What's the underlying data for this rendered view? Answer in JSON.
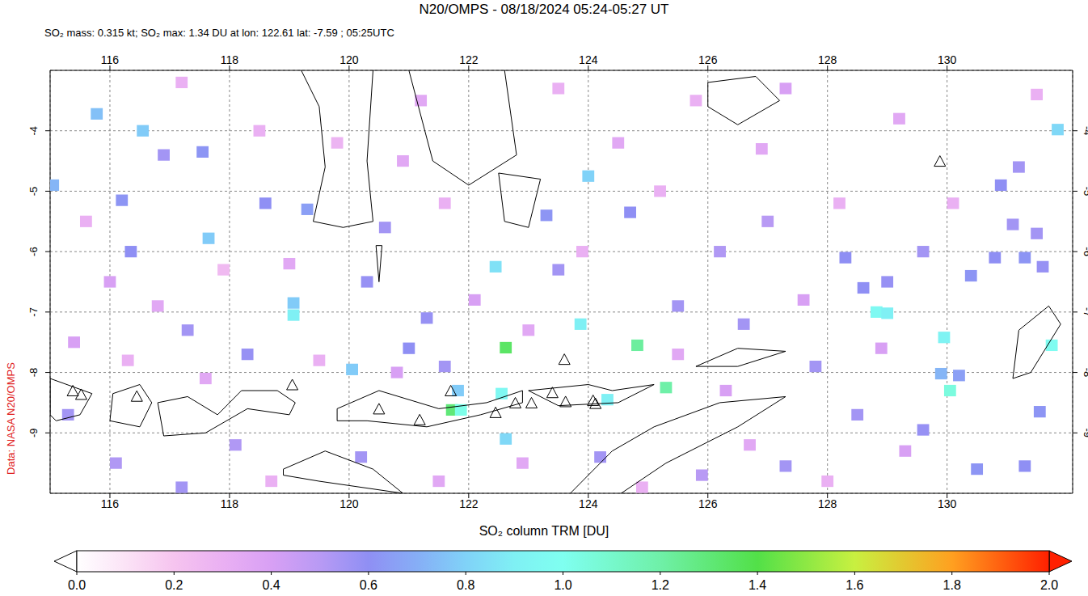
{
  "chart_data": {
    "type": "map",
    "title": "N20/OMPS - 08/18/2024 05:24-05:27 UT",
    "subtitle": "SO₂ mass: 0.315 kt; SO₂ max: 1.34 DU at lon: 122.61 lat: -7.59 ; 05:25UTC",
    "annotation": "Data: NASA N20/OMPS",
    "xlim": [
      115,
      132.1
    ],
    "ylim": [
      -10,
      -3
    ],
    "xticks": [
      116,
      118,
      120,
      122,
      124,
      126,
      128,
      130
    ],
    "yticks": [
      -9,
      -8,
      -7,
      -6,
      -5,
      -4
    ],
    "grid": true,
    "colorbar": {
      "label": "SO₂ column TRM [DU]",
      "range": [
        0,
        2
      ],
      "ticks": [
        {
          "value": 0,
          "label": "0.0"
        },
        {
          "value": 0.2,
          "label": "0.2"
        },
        {
          "value": 0.4,
          "label": "0.4"
        },
        {
          "value": 0.6,
          "label": "0.6"
        },
        {
          "value": 0.8,
          "label": "0.8"
        },
        {
          "value": 1,
          "label": "1.0"
        },
        {
          "value": 1.2,
          "label": "1.2"
        },
        {
          "value": 1.4,
          "label": "1.4"
        },
        {
          "value": 1.6,
          "label": "1.6"
        },
        {
          "value": 1.8,
          "label": "1.8"
        },
        {
          "value": 2,
          "label": "2.0"
        }
      ]
    },
    "cells": [
      [
        122.62,
        -7.59,
        1.34
      ],
      [
        121.72,
        -8.62,
        1.3
      ],
      [
        121.87,
        -8.62,
        1.02
      ],
      [
        125.3,
        -8.25,
        1.2
      ],
      [
        124.82,
        -7.55,
        1.22
      ],
      [
        130.05,
        -8.3,
        1.05
      ],
      [
        131.75,
        -7.55,
        0.98
      ],
      [
        129.95,
        -7.42,
        0.92
      ],
      [
        128.82,
        -7.0,
        0.96
      ],
      [
        129.0,
        -7.02,
        0.9
      ],
      [
        123.87,
        -7.2,
        0.9
      ],
      [
        122.55,
        -8.35,
        0.95
      ],
      [
        124.32,
        -8.45,
        0.9
      ],
      [
        119.07,
        -7.05,
        0.9
      ],
      [
        119.07,
        -6.85,
        0.78
      ],
      [
        121.82,
        -8.3,
        0.78
      ],
      [
        116.55,
        -4.0,
        0.78
      ],
      [
        115.78,
        -3.72,
        0.75
      ],
      [
        131.85,
        -3.98,
        0.82
      ],
      [
        115.05,
        -4.9,
        0.72
      ],
      [
        122.45,
        -6.25,
        0.85
      ],
      [
        124.0,
        -4.75,
        0.8
      ],
      [
        120.05,
        -7.95,
        0.78
      ],
      [
        122.62,
        -9.1,
        0.82
      ],
      [
        117.65,
        -5.78,
        0.78
      ],
      [
        129.9,
        -8.02,
        0.72
      ],
      [
        130.2,
        -8.05,
        0.65
      ],
      [
        116.2,
        -5.15,
        0.62
      ],
      [
        116.35,
        -6.0,
        0.6
      ],
      [
        116.9,
        -4.4,
        0.55
      ],
      [
        117.55,
        -4.35,
        0.62
      ],
      [
        118.6,
        -5.2,
        0.6
      ],
      [
        119.3,
        -5.3,
        0.65
      ],
      [
        120.6,
        -5.6,
        0.55
      ],
      [
        121.0,
        -7.6,
        0.6
      ],
      [
        121.3,
        -7.1,
        0.58
      ],
      [
        121.6,
        -7.9,
        0.55
      ],
      [
        123.3,
        -5.4,
        0.62
      ],
      [
        123.5,
        -6.3,
        0.55
      ],
      [
        124.7,
        -5.35,
        0.6
      ],
      [
        125.5,
        -6.9,
        0.55
      ],
      [
        126.2,
        -6.0,
        0.52
      ],
      [
        127.0,
        -5.5,
        0.5
      ],
      [
        128.3,
        -6.1,
        0.6
      ],
      [
        128.6,
        -6.6,
        0.6
      ],
      [
        129.0,
        -6.5,
        0.58
      ],
      [
        129.6,
        -6.0,
        0.55
      ],
      [
        130.4,
        -6.4,
        0.62
      ],
      [
        130.8,
        -6.1,
        0.6
      ],
      [
        131.1,
        -5.55,
        0.55
      ],
      [
        131.3,
        -6.1,
        0.62
      ],
      [
        131.6,
        -6.25,
        0.58
      ],
      [
        131.5,
        -5.7,
        0.55
      ],
      [
        130.9,
        -4.9,
        0.6
      ],
      [
        131.2,
        -4.6,
        0.55
      ],
      [
        130.5,
        -9.6,
        0.62
      ],
      [
        131.3,
        -9.55,
        0.6
      ],
      [
        131.55,
        -8.65,
        0.62
      ],
      [
        127.3,
        -9.55,
        0.55
      ],
      [
        128.5,
        -8.7,
        0.55
      ],
      [
        129.6,
        -8.95,
        0.58
      ],
      [
        124.2,
        -9.4,
        0.55
      ],
      [
        120.2,
        -9.4,
        0.55
      ],
      [
        118.1,
        -9.2,
        0.52
      ],
      [
        117.2,
        -9.9,
        0.55
      ],
      [
        116.1,
        -9.5,
        0.52
      ],
      [
        115.3,
        -8.7,
        0.55
      ],
      [
        118.3,
        -7.7,
        0.58
      ],
      [
        117.3,
        -7.3,
        0.55
      ],
      [
        120.3,
        -6.5,
        0.58
      ],
      [
        126.6,
        -7.2,
        0.55
      ],
      [
        127.8,
        -7.9,
        0.55
      ],
      [
        125.9,
        -9.7,
        0.5
      ],
      [
        115.6,
        -5.5,
        0.3
      ],
      [
        116.8,
        -6.9,
        0.35
      ],
      [
        117.9,
        -6.3,
        0.25
      ],
      [
        118.5,
        -4.0,
        0.3
      ],
      [
        119.8,
        -4.2,
        0.28
      ],
      [
        120.9,
        -4.5,
        0.35
      ],
      [
        121.6,
        -5.2,
        0.3
      ],
      [
        122.1,
        -6.8,
        0.4
      ],
      [
        123.0,
        -7.3,
        0.35
      ],
      [
        123.9,
        -6.0,
        0.3
      ],
      [
        124.5,
        -4.2,
        0.35
      ],
      [
        125.2,
        -5.0,
        0.3
      ],
      [
        125.8,
        -3.5,
        0.3
      ],
      [
        126.9,
        -4.3,
        0.35
      ],
      [
        127.6,
        -6.8,
        0.4
      ],
      [
        128.2,
        -5.2,
        0.3
      ],
      [
        129.2,
        -3.8,
        0.35
      ],
      [
        130.1,
        -5.2,
        0.3
      ],
      [
        131.5,
        -3.4,
        0.3
      ],
      [
        115.4,
        -7.5,
        0.4
      ],
      [
        116.3,
        -7.8,
        0.3
      ],
      [
        117.6,
        -8.1,
        0.35
      ],
      [
        119.5,
        -7.8,
        0.3
      ],
      [
        120.8,
        -8.0,
        0.4
      ],
      [
        122.9,
        -9.5,
        0.35
      ],
      [
        124.9,
        -9.9,
        0.3
      ],
      [
        126.7,
        -9.2,
        0.35
      ],
      [
        128.0,
        -9.8,
        0.3
      ],
      [
        129.3,
        -9.3,
        0.4
      ],
      [
        118.7,
        -9.8,
        0.3
      ],
      [
        121.5,
        -9.8,
        0.35
      ],
      [
        123.5,
        -3.3,
        0.3
      ],
      [
        121.2,
        -3.5,
        0.35
      ],
      [
        117.2,
        -3.2,
        0.3
      ],
      [
        127.3,
        -3.3,
        0.4
      ],
      [
        125.5,
        -7.7,
        0.35
      ],
      [
        126.3,
        -8.3,
        0.4
      ],
      [
        128.9,
        -7.6,
        0.4
      ],
      [
        119.0,
        -6.2,
        0.35
      ],
      [
        116.0,
        -6.5,
        0.4
      ]
    ],
    "volcanoes": [
      [
        115.38,
        -8.32
      ],
      [
        115.52,
        -8.38
      ],
      [
        116.45,
        -8.41
      ],
      [
        119.05,
        -8.22
      ],
      [
        120.5,
        -8.62
      ],
      [
        121.18,
        -8.8
      ],
      [
        121.7,
        -8.32
      ],
      [
        122.45,
        -8.68
      ],
      [
        122.78,
        -8.52
      ],
      [
        123.05,
        -8.52
      ],
      [
        123.4,
        -8.35
      ],
      [
        123.6,
        -7.8
      ],
      [
        123.62,
        -8.5
      ],
      [
        124.08,
        -8.48
      ],
      [
        124.12,
        -8.53
      ],
      [
        129.88,
        -4.52
      ]
    ],
    "coastlines": [
      [
        [
          115,
          -8.1
        ],
        [
          115.7,
          -8.35
        ],
        [
          115.5,
          -8.7
        ],
        [
          115.1,
          -8.8
        ],
        [
          115,
          -8.7
        ],
        [
          115,
          -8.1
        ]
      ],
      [
        [
          116.05,
          -8.35
        ],
        [
          116.5,
          -8.2
        ],
        [
          116.7,
          -8.5
        ],
        [
          116.5,
          -8.9
        ],
        [
          116.0,
          -8.8
        ],
        [
          116.05,
          -8.35
        ]
      ],
      [
        [
          116.8,
          -8.5
        ],
        [
          117.3,
          -8.4
        ],
        [
          117.8,
          -8.7
        ],
        [
          118.2,
          -8.3
        ],
        [
          118.8,
          -8.3
        ],
        [
          119.1,
          -8.5
        ],
        [
          119.0,
          -8.7
        ],
        [
          118.3,
          -8.6
        ],
        [
          117.6,
          -9.0
        ],
        [
          116.9,
          -9.05
        ],
        [
          116.8,
          -8.5
        ]
      ],
      [
        [
          119.8,
          -8.6
        ],
        [
          120.5,
          -8.3
        ],
        [
          121.5,
          -8.6
        ],
        [
          122.3,
          -8.5
        ],
        [
          122.9,
          -8.3
        ],
        [
          122.9,
          -8.5
        ],
        [
          122.2,
          -8.7
        ],
        [
          121.3,
          -8.9
        ],
        [
          120.3,
          -8.8
        ],
        [
          119.8,
          -8.8
        ],
        [
          119.8,
          -8.6
        ]
      ],
      [
        [
          118.9,
          -9.6
        ],
        [
          119.6,
          -9.3
        ],
        [
          120.4,
          -9.6
        ],
        [
          120.9,
          -10.0
        ],
        [
          119.5,
          -9.8
        ],
        [
          118.9,
          -9.7
        ],
        [
          118.9,
          -9.6
        ]
      ],
      [
        [
          123.5,
          -10.2
        ],
        [
          124.4,
          -9.3
        ],
        [
          125.1,
          -8.9
        ],
        [
          126.2,
          -8.5
        ],
        [
          127.3,
          -8.4
        ],
        [
          126.5,
          -8.9
        ],
        [
          125.3,
          -9.5
        ],
        [
          124.4,
          -10.1
        ],
        [
          123.8,
          -10.3
        ]
      ],
      [
        [
          123.0,
          -8.3
        ],
        [
          124.0,
          -8.2
        ],
        [
          124.4,
          -8.3
        ],
        [
          125.1,
          -8.2
        ],
        [
          124.5,
          -8.5
        ],
        [
          123.5,
          -8.55
        ],
        [
          123.0,
          -8.3
        ]
      ],
      [
        [
          125.8,
          -7.9
        ],
        [
          126.5,
          -7.6
        ],
        [
          127.3,
          -7.65
        ],
        [
          126.5,
          -7.9
        ],
        [
          125.8,
          -7.9
        ]
      ],
      [
        [
          119.2,
          -3
        ],
        [
          119.5,
          -3.6
        ],
        [
          119.6,
          -4.6
        ],
        [
          119.4,
          -5.5
        ],
        [
          119.9,
          -5.6
        ],
        [
          120.4,
          -5.5
        ],
        [
          120.3,
          -4.5
        ],
        [
          120.4,
          -3
        ]
      ],
      [
        [
          121,
          -3
        ],
        [
          121.4,
          -4.5
        ],
        [
          122,
          -4.9
        ],
        [
          122.8,
          -4.4
        ],
        [
          122.6,
          -3
        ]
      ],
      [
        [
          122.5,
          -4.7
        ],
        [
          123.2,
          -4.8
        ],
        [
          123,
          -5.6
        ],
        [
          122.6,
          -5.5
        ],
        [
          122.5,
          -4.7
        ]
      ],
      [
        [
          120.45,
          -5.9
        ],
        [
          120.55,
          -5.9
        ],
        [
          120.5,
          -6.5
        ],
        [
          120.45,
          -5.9
        ]
      ],
      [
        [
          126,
          -3.2
        ],
        [
          126.8,
          -3.1
        ],
        [
          127.2,
          -3.5
        ],
        [
          126.5,
          -3.9
        ],
        [
          126,
          -3.6
        ],
        [
          126,
          -3.2
        ]
      ],
      [
        [
          131.2,
          -7.3
        ],
        [
          131.7,
          -6.9
        ],
        [
          131.9,
          -7.2
        ],
        [
          131.4,
          -8.0
        ],
        [
          131.1,
          -8.1
        ],
        [
          131.2,
          -7.3
        ]
      ]
    ]
  }
}
